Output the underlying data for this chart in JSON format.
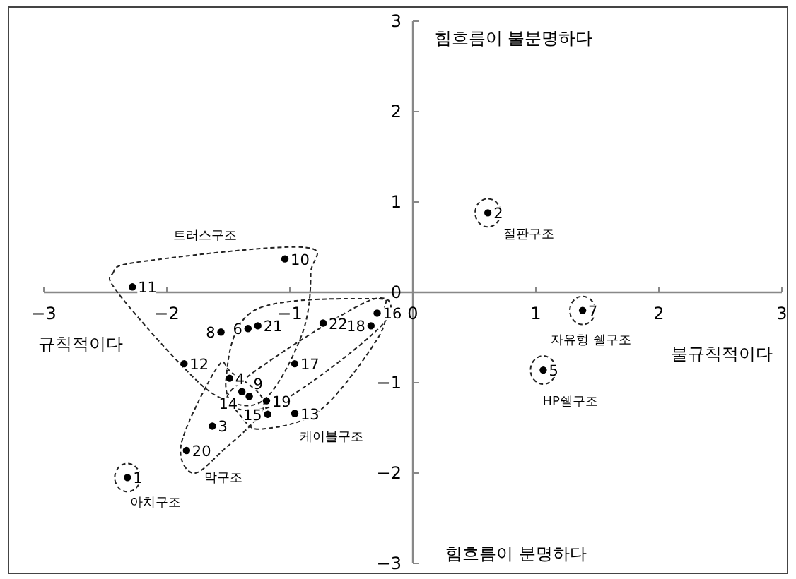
{
  "chart_data": {
    "type": "scatter",
    "color": "#000000",
    "marker": "circle",
    "x": [
      -2.32,
      0.61,
      -1.63,
      -1.49,
      1.06,
      -1.34,
      1.38,
      -1.56,
      -1.33,
      -1.04,
      -2.28,
      -1.86,
      -0.96,
      -1.39,
      -1.18,
      -0.29,
      -0.96,
      -0.34,
      -1.19,
      -1.84,
      -1.26,
      -0.73
    ],
    "values": [
      -2.05,
      0.88,
      -1.48,
      -0.95,
      -0.86,
      -0.4,
      -0.2,
      -0.44,
      -1.15,
      0.37,
      0.06,
      -0.79,
      -1.34,
      -1.1,
      -1.35,
      -0.23,
      -0.79,
      -0.37,
      -1.2,
      -1.75,
      -0.37,
      -0.34
    ],
    "xlim": [
      -3,
      3
    ],
    "ylim": [
      -3,
      3
    ],
    "xticks": [
      -3,
      -2,
      -1,
      0,
      1,
      2,
      3
    ],
    "yticks": [
      -3,
      -2,
      -1,
      0,
      1,
      2,
      3
    ],
    "annotations": [
      "트러스구조",
      "케이블구조",
      "막구조",
      "아치구조",
      "절판구조",
      "자유형 쉘구조",
      "HP쉘구조",
      "힘흐름이 불분명하다",
      "힘흐름이 분명하다",
      "규칙적이다",
      "불규칙적이다",
      {
        "text": "1",
        "x": -2.32,
        "y": -2.05
      },
      {
        "text": "2",
        "x": 0.61,
        "y": 0.88
      },
      {
        "text": "3",
        "x": -1.63,
        "y": -1.48
      },
      {
        "text": "4",
        "x": -1.49,
        "y": -0.95
      },
      {
        "text": "5",
        "x": 1.06,
        "y": -0.86
      },
      {
        "text": "6",
        "x": -1.34,
        "y": -0.4
      },
      {
        "text": "7",
        "x": 1.38,
        "y": -0.2
      },
      {
        "text": "8",
        "x": -1.56,
        "y": -0.44
      },
      {
        "text": "9",
        "x": -1.33,
        "y": -1.15
      },
      {
        "text": "10",
        "x": -1.04,
        "y": 0.37
      },
      {
        "text": "11",
        "x": -2.28,
        "y": 0.06
      },
      {
        "text": "12",
        "x": -1.86,
        "y": -0.79
      },
      {
        "text": "13",
        "x": -0.96,
        "y": -1.34
      },
      {
        "text": "14",
        "x": -1.39,
        "y": -1.1
      },
      {
        "text": "15",
        "x": -1.18,
        "y": -1.35
      },
      {
        "text": "16",
        "x": -0.29,
        "y": -0.23
      },
      {
        "text": "17",
        "x": -0.96,
        "y": -0.79
      },
      {
        "text": "18",
        "x": -0.34,
        "y": -0.37
      },
      {
        "text": "19",
        "x": -1.19,
        "y": -1.2
      },
      {
        "text": "20",
        "x": -1.84,
        "y": -1.75
      },
      {
        "text": "21",
        "x": -1.26,
        "y": -0.37
      },
      {
        "text": "22",
        "x": -0.73,
        "y": -0.34
      }
    ]
  }
}
